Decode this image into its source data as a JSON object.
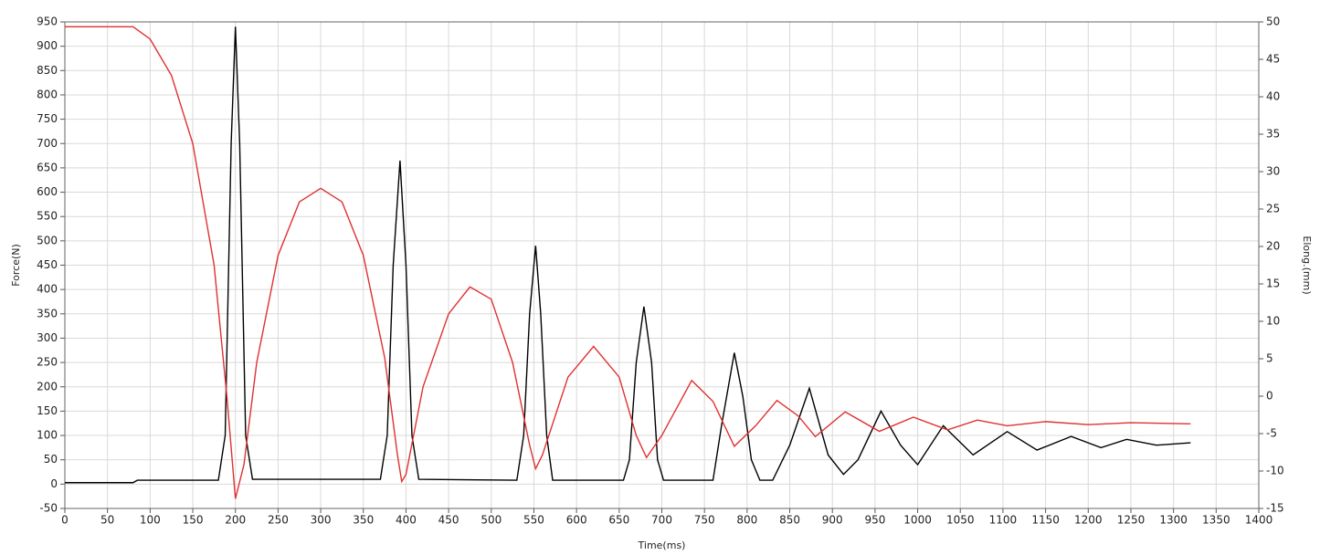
{
  "chart_data": {
    "type": "line",
    "x_label": "Time(ms)",
    "y_label": "Force(N)",
    "y2_label": "Elong.(mm)",
    "xlim": [
      0,
      1400
    ],
    "xticks": [
      0,
      50,
      100,
      150,
      200,
      250,
      300,
      350,
      400,
      450,
      500,
      550,
      600,
      650,
      700,
      750,
      800,
      850,
      900,
      950,
      1000,
      1050,
      1100,
      1150,
      1200,
      1250,
      1300,
      1350,
      1400
    ],
    "ylim": [
      -50,
      950
    ],
    "yticks": [
      -50,
      0,
      50,
      100,
      150,
      200,
      250,
      300,
      350,
      400,
      450,
      500,
      550,
      600,
      650,
      700,
      750,
      800,
      850,
      900,
      950
    ],
    "y2lim": [
      -15,
      50
    ],
    "y2ticks": [
      -15,
      -10,
      -5,
      0,
      5,
      10,
      15,
      20,
      25,
      30,
      35,
      40,
      45,
      50
    ],
    "grid": true,
    "series": [
      {
        "color": "#000000",
        "axis": "y",
        "x": [
          0,
          80,
          85,
          180,
          188,
          195,
          200,
          205,
          212,
          220,
          370,
          378,
          385,
          393,
          400,
          407,
          415,
          530,
          538,
          545,
          552,
          558,
          565,
          572,
          655,
          662,
          670,
          679,
          688,
          695,
          702,
          760,
          770,
          785,
          795,
          805,
          815,
          830,
          850,
          873,
          895,
          913,
          930,
          957,
          980,
          1000,
          1030,
          1065,
          1105,
          1140,
          1180,
          1215,
          1245,
          1280,
          1320
        ],
        "values": [
          3,
          3,
          8,
          8,
          100,
          700,
          940,
          700,
          100,
          10,
          10,
          100,
          450,
          665,
          450,
          100,
          10,
          8,
          100,
          350,
          490,
          350,
          100,
          8,
          8,
          50,
          250,
          365,
          250,
          50,
          8,
          8,
          120,
          270,
          180,
          50,
          8,
          8,
          80,
          197,
          60,
          20,
          50,
          150,
          80,
          40,
          120,
          60,
          108,
          70,
          98,
          75,
          92,
          80,
          85
        ]
      },
      {
        "color": "#e03030",
        "axis": "y2",
        "x": [
          0,
          80,
          100,
          125,
          150,
          175,
          190,
          200,
          210,
          225,
          250,
          275,
          300,
          325,
          350,
          375,
          390,
          395,
          400,
          420,
          450,
          475,
          500,
          525,
          545,
          552,
          560,
          590,
          620,
          650,
          670,
          682,
          700,
          735,
          760,
          785,
          810,
          835,
          860,
          880,
          915,
          955,
          995,
          1035,
          1070,
          1105,
          1150,
          1200,
          1250,
          1320
        ],
        "values": [
          49.35,
          49.35,
          47.7,
          42.85,
          33.75,
          17.5,
          -0.05,
          -13.7,
          -9.15,
          4.5,
          18.8,
          25.95,
          27.77,
          25.95,
          18.8,
          5.15,
          -7.85,
          -11.4,
          -10.45,
          1.25,
          11,
          14.6,
          12.95,
          4.5,
          -6.55,
          -9.7,
          -7.85,
          2.55,
          6.65,
          2.55,
          -5.25,
          -8.2,
          -5.25,
          2.1,
          -0.7,
          -6.7,
          -3.95,
          -0.57,
          -2.65,
          -5.4,
          -2.1,
          -4.7,
          -2.8,
          -4.5,
          -3.2,
          -3.95,
          -3.4,
          -3.8,
          -3.55,
          -3.7
        ]
      }
    ]
  }
}
